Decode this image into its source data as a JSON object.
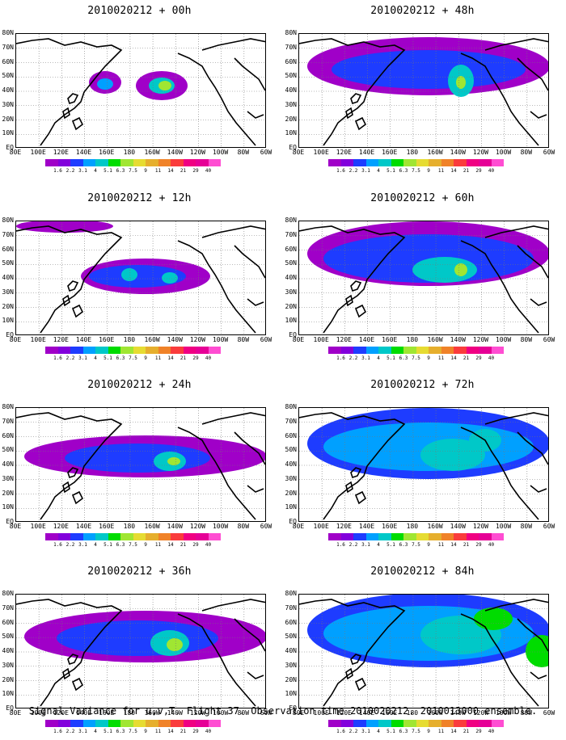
{
  "chart_data": {
    "type": "heatmap",
    "variable": "Signal Variance for u,v,T",
    "panels": [
      {
        "title": "2010020212 + 00h",
        "lead_hours": 0
      },
      {
        "title": "2010020212 + 12h",
        "lead_hours": 12
      },
      {
        "title": "2010020212 + 24h",
        "lead_hours": 24
      },
      {
        "title": "2010020212 + 36h",
        "lead_hours": 36
      },
      {
        "title": "2010020212 + 48h",
        "lead_hours": 48
      },
      {
        "title": "2010020212 + 60h",
        "lead_hours": 60
      },
      {
        "title": "2010020212 + 72h",
        "lead_hours": 72
      },
      {
        "title": "2010020212 + 84h",
        "lead_hours": 84
      }
    ],
    "x_ticks": [
      "80E",
      "100E",
      "120E",
      "140E",
      "160E",
      "180",
      "160W",
      "140W",
      "120W",
      "100W",
      "80W",
      "60W"
    ],
    "y_ticks": [
      "EQ",
      "10N",
      "20N",
      "30N",
      "40N",
      "50N",
      "60N",
      "70N",
      "80N"
    ],
    "xlim": [
      "80E",
      "60W"
    ],
    "ylim": [
      "EQ",
      "80N"
    ],
    "grid": true,
    "colorbar": {
      "levels": [
        "1.6",
        "2.2",
        "3.1",
        "4",
        "5.1",
        "6.3",
        "7.5",
        "9",
        "11",
        "14",
        "21",
        "29",
        "40"
      ],
      "colors": [
        "#a000c8",
        "#8200dc",
        "#1e3cff",
        "#00a0ff",
        "#00c8c8",
        "#00dc00",
        "#a0e632",
        "#e6dc32",
        "#e6af2d",
        "#f08228",
        "#fa3c3c",
        "#f00082",
        "#e60096",
        "#ff4dd2"
      ]
    }
  },
  "footer": "Signal Variance for u,v,T. Flight 37. Observation time 2010020212. 2010013000 ensemble."
}
